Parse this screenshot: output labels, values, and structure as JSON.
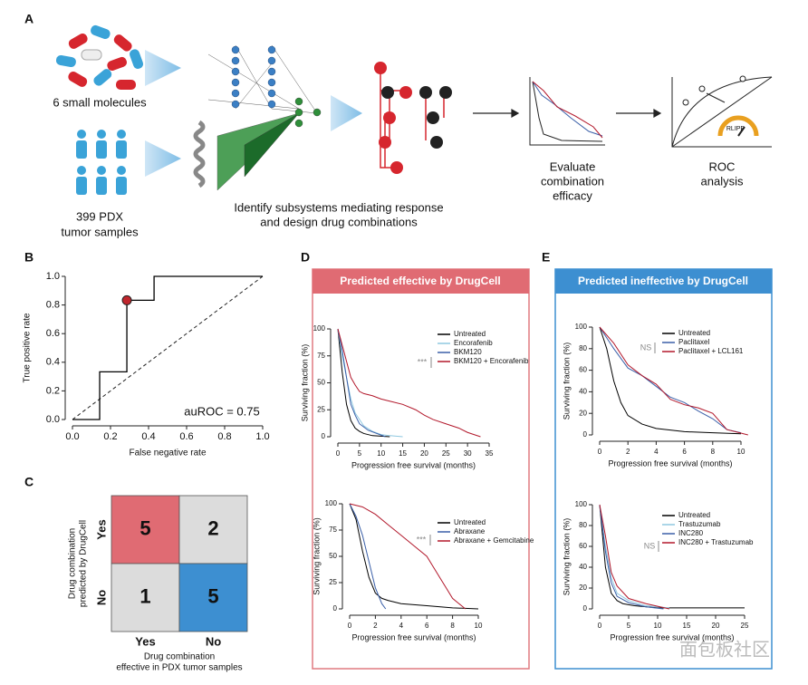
{
  "panel_labels": [
    "A",
    "B",
    "C",
    "D",
    "E"
  ],
  "panel_a": {
    "molecules_label": "6 small molecules",
    "samples_label": [
      "399 PDX",
      "tumor samples"
    ],
    "network_caption": [
      "Identify subsystems mediating response",
      "and design drug combinations"
    ],
    "evaluate_label": [
      "Evaluate",
      "combination",
      "efficacy"
    ],
    "roc_label": [
      "ROC",
      "analysis"
    ],
    "gauge_label": "RLIPP"
  },
  "panel_d_title": "Predicted effective by DrugCell",
  "panel_e_title": "Predicted ineffective by DrugCell",
  "watermark": "面包板社区",
  "chart_data": [
    {
      "type": "line",
      "xlabel": "False negative rate",
      "ylabel": "True positive rate",
      "xlim": [
        0,
        1
      ],
      "ylim": [
        0,
        1
      ],
      "xticks": [
        {
          "value": 0,
          "label": "0.0"
        },
        {
          "value": 0.2,
          "label": "0.2"
        },
        {
          "value": 0.4,
          "label": "0.4"
        },
        {
          "value": 0.6,
          "label": "0.6"
        },
        {
          "value": 0.8,
          "label": "0.8"
        },
        {
          "value": 1,
          "label": "1.0"
        }
      ],
      "yticks": [
        {
          "value": 0,
          "label": "0.0"
        },
        {
          "value": 0.2,
          "label": "0.2"
        },
        {
          "value": 0.4,
          "label": "0.4"
        },
        {
          "value": 0.6,
          "label": "0.6"
        },
        {
          "value": 0.8,
          "label": "0.8"
        },
        {
          "value": 1,
          "label": "1.0"
        }
      ],
      "series": [
        {
          "color": "#000000",
          "x": [
            0,
            0.143,
            0.143,
            0.286,
            0.286,
            0.429,
            0.429,
            1
          ],
          "values": [
            0,
            0,
            0.333,
            0.333,
            0.833,
            0.833,
            1,
            1
          ]
        }
      ],
      "marker": {
        "x": 0.286,
        "y": 0.833,
        "color": "#c0262d"
      },
      "diagonal": true,
      "annotation": "auROC = 0.75"
    },
    {
      "type": "heatmap",
      "ylabel": [
        "Drug combination",
        "predicted by DrugCell"
      ],
      "xlabel": [
        "Drug combination",
        "effective in PDX tumor samples"
      ],
      "rows": [
        "Yes",
        "No"
      ],
      "columns": [
        "Yes",
        "No"
      ],
      "values": [
        [
          5,
          2
        ],
        [
          1,
          5
        ]
      ],
      "colors": [
        [
          "#e06b73",
          "#dcdcdc"
        ],
        [
          "#dcdcdc",
          "#3d8fd1"
        ]
      ]
    },
    {
      "type": "line",
      "xlabel": "Progression free survival (months)",
      "ylabel": "Surviving fraction (%)",
      "xlim": [
        0,
        35
      ],
      "ylim": [
        0,
        100
      ],
      "xticks": [
        0,
        5,
        10,
        15,
        20,
        25,
        30,
        35
      ],
      "yticks": [
        0,
        25,
        50,
        75,
        100
      ],
      "annotation": "***",
      "series": [
        {
          "name": "Untreated",
          "color": "#000000",
          "x": [
            0,
            0.5,
            1,
            2,
            3,
            4,
            5,
            6,
            8,
            12
          ],
          "values": [
            100,
            80,
            60,
            30,
            15,
            8,
            5,
            3,
            1,
            0
          ]
        },
        {
          "name": "Encorafenib",
          "color": "#8fc8e0",
          "x": [
            0,
            1,
            2,
            3,
            4,
            6,
            8,
            10,
            12,
            15
          ],
          "values": [
            100,
            75,
            55,
            35,
            22,
            10,
            5,
            2,
            1,
            0
          ]
        },
        {
          "name": "BKM120",
          "color": "#3a5fa8",
          "x": [
            0,
            1,
            2,
            3,
            4,
            5,
            7,
            9,
            11
          ],
          "values": [
            100,
            80,
            55,
            30,
            20,
            12,
            6,
            3,
            0
          ]
        },
        {
          "name": "BKM120 + Encorafenib",
          "color": "#b2182b",
          "x": [
            0,
            1,
            2,
            3,
            4,
            5,
            6,
            8,
            10,
            12,
            15,
            18,
            20,
            22,
            25,
            28,
            30,
            33
          ],
          "values": [
            100,
            85,
            70,
            55,
            48,
            42,
            40,
            38,
            35,
            33,
            30,
            25,
            20,
            16,
            12,
            8,
            4,
            0
          ]
        }
      ]
    },
    {
      "type": "line",
      "xlabel": "Progression free survival (months)",
      "ylabel": "Surviving fraction (%)",
      "xlim": [
        0,
        10
      ],
      "ylim": [
        0,
        100
      ],
      "xticks": [
        0,
        2,
        4,
        6,
        8,
        10
      ],
      "yticks": [
        0,
        25,
        50,
        75,
        100
      ],
      "annotation": "***",
      "series": [
        {
          "name": "Untreated",
          "color": "#000000",
          "x": [
            0,
            0.5,
            1,
            1.5,
            2,
            2.5,
            3,
            4,
            6,
            8,
            10
          ],
          "values": [
            100,
            85,
            55,
            30,
            15,
            10,
            8,
            5,
            3,
            1,
            0
          ]
        },
        {
          "name": "Abraxane",
          "color": "#3a5fa8",
          "x": [
            0,
            0.5,
            1,
            1.5,
            2,
            2.5,
            2.8
          ],
          "values": [
            100,
            88,
            70,
            45,
            20,
            5,
            0
          ]
        },
        {
          "name": "Abraxane + Gemcitabine",
          "color": "#b2182b",
          "x": [
            0,
            1,
            2,
            3,
            3.5,
            4,
            5,
            6,
            6.5,
            7,
            7.5,
            8,
            8.5,
            9
          ],
          "values": [
            100,
            97,
            90,
            80,
            75,
            70,
            60,
            50,
            40,
            30,
            20,
            10,
            5,
            0
          ]
        }
      ]
    },
    {
      "type": "line",
      "xlabel": "Progression free survival (months)",
      "ylabel": "Surviving fraction (%)",
      "xlim": [
        0,
        10
      ],
      "ylim": [
        0,
        100
      ],
      "xticks": [
        0,
        2,
        4,
        6,
        8,
        10
      ],
      "yticks": [
        0,
        20,
        40,
        60,
        80,
        100
      ],
      "annotation": "NS",
      "series": [
        {
          "name": "Untreated",
          "color": "#000000",
          "x": [
            0,
            0.5,
            1,
            1.5,
            2,
            3,
            4,
            6,
            8,
            10
          ],
          "values": [
            100,
            80,
            50,
            30,
            18,
            10,
            6,
            3,
            2,
            1
          ]
        },
        {
          "name": "Paclitaxel",
          "color": "#3a5fa8",
          "x": [
            0,
            1,
            2,
            3,
            4,
            5,
            6,
            7,
            8,
            9,
            10
          ],
          "values": [
            100,
            80,
            62,
            55,
            45,
            35,
            30,
            22,
            15,
            5,
            2
          ]
        },
        {
          "name": "Paclitaxel + LCL161",
          "color": "#b2182b",
          "x": [
            0,
            1,
            2,
            3,
            4,
            5,
            6,
            7,
            8,
            9,
            10.5
          ],
          "values": [
            100,
            85,
            65,
            55,
            47,
            33,
            28,
            25,
            20,
            5,
            0
          ]
        }
      ]
    },
    {
      "type": "line",
      "xlabel": "Progression free survival (months)",
      "ylabel": "Surviving fraction (%)",
      "xlim": [
        0,
        25
      ],
      "ylim": [
        0,
        100
      ],
      "xticks": [
        0,
        5,
        10,
        15,
        20,
        25
      ],
      "yticks": [
        0,
        20,
        40,
        60,
        80,
        100
      ],
      "annotation": "NS",
      "series": [
        {
          "name": "Untreated",
          "color": "#000000",
          "x": [
            0,
            0.5,
            1,
            2,
            3,
            4,
            6,
            10,
            25
          ],
          "values": [
            100,
            70,
            40,
            15,
            8,
            5,
            3,
            1,
            1
          ]
        },
        {
          "name": "Trastuzumab",
          "color": "#8fc8e0",
          "x": [
            0,
            1,
            2,
            3,
            5,
            8,
            12
          ],
          "values": [
            100,
            60,
            30,
            15,
            8,
            3,
            1
          ]
        },
        {
          "name": "INC280",
          "color": "#3a5fa8",
          "x": [
            0,
            1,
            2,
            3,
            5,
            8,
            11
          ],
          "values": [
            100,
            55,
            25,
            12,
            6,
            2,
            0
          ]
        },
        {
          "name": "INC280 + Trastuzumab",
          "color": "#b2182b",
          "x": [
            0,
            1,
            2,
            3,
            5,
            8,
            12
          ],
          "values": [
            100,
            70,
            35,
            22,
            10,
            5,
            0
          ]
        }
      ]
    }
  ]
}
